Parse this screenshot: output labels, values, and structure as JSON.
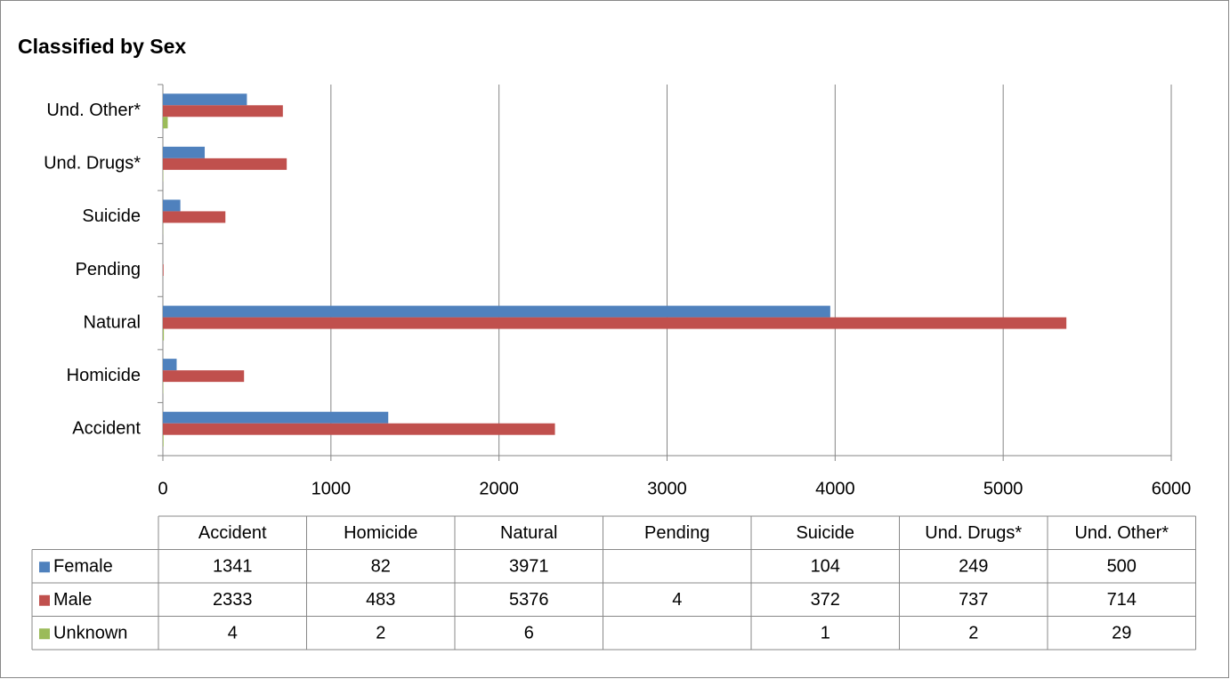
{
  "chart_data": {
    "type": "bar",
    "orientation": "horizontal",
    "title": "Classified by Sex",
    "categories": [
      "Accident",
      "Homicide",
      "Natural",
      "Pending",
      "Suicide",
      "Und. Drugs*",
      "Und. Other*"
    ],
    "series": [
      {
        "name": "Female",
        "color": "#4f81bd",
        "values": [
          1341,
          82,
          3971,
          null,
          104,
          249,
          500
        ]
      },
      {
        "name": "Male",
        "color": "#c0504d",
        "values": [
          2333,
          483,
          5376,
          4,
          372,
          737,
          714
        ]
      },
      {
        "name": "Unknown",
        "color": "#9bbb59",
        "values": [
          4,
          2,
          6,
          null,
          1,
          2,
          29
        ]
      }
    ],
    "xlim": [
      0,
      6000
    ],
    "xticks": [
      0,
      1000,
      2000,
      3000,
      4000,
      5000,
      6000
    ],
    "grid": true,
    "data_table": true
  }
}
